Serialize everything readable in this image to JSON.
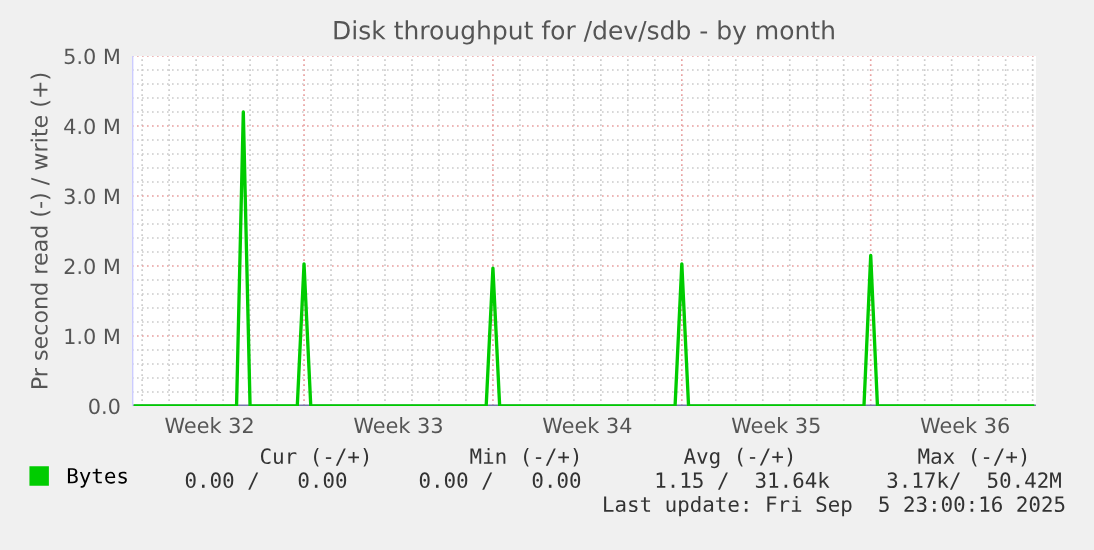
{
  "chart_data": {
    "type": "line",
    "title": "Disk throughput for /dev/sdb - by month",
    "ylabel": "Pr second read (-) / write (+)",
    "categories": [
      null,
      null,
      null,
      null,
      null,
      null,
      null,
      null,
      null,
      null,
      null,
      "Week 32",
      null,
      null,
      null,
      null,
      null,
      null,
      null,
      null,
      null,
      null,
      null,
      null,
      null,
      null,
      null,
      null,
      null,
      null,
      null,
      null,
      null,
      null,
      null,
      null,
      null,
      null,
      null,
      "Week 33",
      null,
      null,
      null,
      null,
      null,
      null,
      null,
      null,
      null,
      null,
      null,
      null,
      null,
      null,
      null,
      null,
      null,
      null,
      null,
      null,
      null,
      null,
      null,
      null,
      null,
      null,
      null,
      "Week 34",
      null,
      null,
      null,
      null,
      null,
      null,
      null,
      null,
      null,
      null,
      null,
      null,
      null,
      null,
      null,
      null,
      null,
      null,
      null,
      null,
      null,
      null,
      null,
      null,
      null,
      null,
      null,
      "Week 35",
      null,
      null,
      null,
      null,
      null,
      null,
      null,
      null,
      null,
      null,
      null,
      null,
      null,
      null,
      null,
      null,
      null,
      null,
      null,
      null,
      null,
      null,
      null,
      null,
      null,
      null,
      null,
      "Week 36",
      null,
      null,
      null,
      null,
      null,
      null,
      null,
      null,
      null,
      null
    ],
    "series": [
      {
        "name": "Bytes",
        "color": "#00cc00",
        "values": [
          0,
          0,
          0,
          0,
          0,
          0,
          0,
          0,
          0,
          0,
          0,
          0,
          0,
          0,
          0,
          0,
          4200000,
          0,
          0,
          0,
          0,
          0,
          0,
          0,
          0,
          2030000,
          0,
          0,
          0,
          0,
          0,
          0,
          0,
          0,
          0,
          0,
          0,
          0,
          0,
          0,
          0,
          0,
          0,
          0,
          0,
          0,
          0,
          0,
          0,
          0,
          0,
          0,
          0,
          1970000,
          0,
          0,
          0,
          0,
          0,
          0,
          0,
          0,
          0,
          0,
          0,
          0,
          0,
          0,
          0,
          0,
          0,
          0,
          0,
          0,
          0,
          0,
          0,
          0,
          0,
          0,
          0,
          2030000,
          0,
          0,
          0,
          0,
          0,
          0,
          0,
          0,
          0,
          0,
          0,
          0,
          0,
          0,
          0,
          0,
          0,
          0,
          0,
          0,
          0,
          0,
          0,
          0,
          0,
          0,
          0,
          2150000,
          0,
          0,
          0,
          0,
          0,
          0,
          0,
          0,
          0,
          0,
          0,
          0,
          0,
          0,
          0,
          0,
          0,
          0,
          0,
          0,
          0,
          0,
          0,
          0
        ]
      }
    ],
    "ylim": [
      0,
      5000000
    ],
    "yticks": [
      {
        "value": 0,
        "label": "0.0"
      },
      {
        "value": 1000000,
        "label": "1.0 M"
      },
      {
        "value": 2000000,
        "label": "2.0 M"
      },
      {
        "value": 3000000,
        "label": "3.0 M"
      },
      {
        "value": 4000000,
        "label": "4.0 M"
      },
      {
        "value": 5000000,
        "label": "5.0 M"
      },
      {
        "value": 200000,
        "label": null
      },
      {
        "value": 400000,
        "label": null
      },
      {
        "value": 600000,
        "label": null
      },
      {
        "value": 800000,
        "label": null
      },
      {
        "value": 1200000,
        "label": null
      },
      {
        "value": 1400000,
        "label": null
      },
      {
        "value": 1600000,
        "label": null
      },
      {
        "value": 1800000,
        "label": null
      },
      {
        "value": 2200000,
        "label": null
      },
      {
        "value": 2400000,
        "label": null
      },
      {
        "value": 2600000,
        "label": null
      },
      {
        "value": 2800000,
        "label": null
      },
      {
        "value": 3200000,
        "label": null
      },
      {
        "value": 3400000,
        "label": null
      },
      {
        "value": 3600000,
        "label": null
      },
      {
        "value": 3800000,
        "label": null
      },
      {
        "value": 4200000,
        "label": null
      },
      {
        "value": 4400000,
        "label": null
      },
      {
        "value": 4600000,
        "label": null
      },
      {
        "value": 4800000,
        "label": null
      }
    ],
    "grid": true,
    "legend": "bottom left",
    "line_style": "solid",
    "marker": "none",
    "annotations": [
      "Cur (-/+)",
      "Min (-/+)",
      "Avg (-/+)",
      "Max (-/+)",
      "0.00 /   0.00",
      "0.00 /   0.00",
      "1.15 /  31.64k",
      "3.17k/  50.42M",
      "Last update: Fri Sep  5 23:00:16 2025"
    ]
  }
}
